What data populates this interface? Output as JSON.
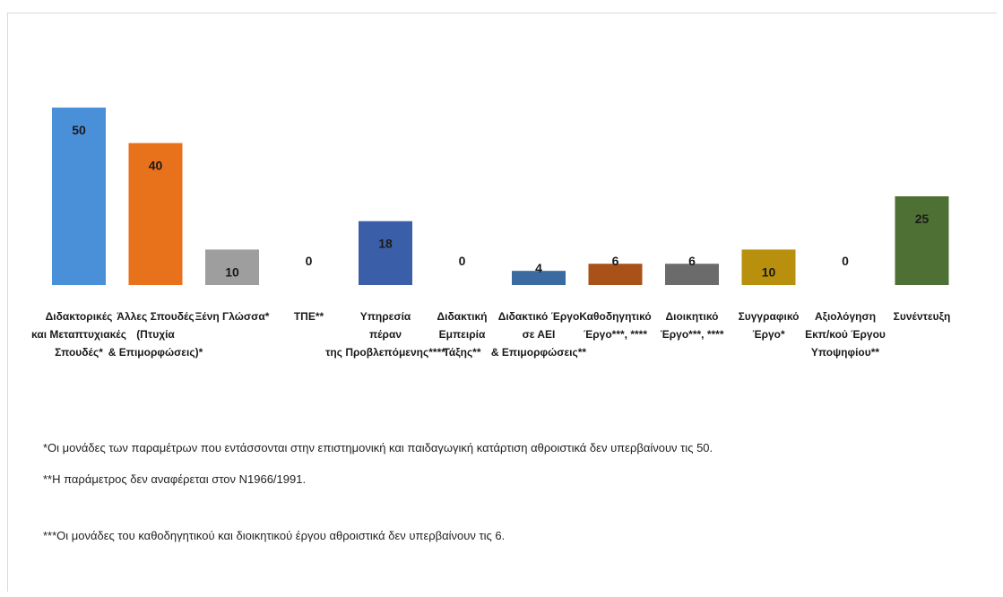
{
  "chart_data": {
    "type": "bar",
    "title": "",
    "xlabel": "",
    "ylabel": "",
    "ylim": [
      0,
      50
    ],
    "grid": false,
    "legend": "none",
    "categories": [
      [
        "Διδακτορικές",
        "και Μεταπτυχιακές",
        "Σπουδές*"
      ],
      [
        "Άλλες Σπουδές",
        "(Πτυχία",
        "& Επιμορφώσεις)*"
      ],
      [
        "Ξένη Γλώσσα*"
      ],
      [
        "ΤΠΕ**"
      ],
      [
        "Υπηρεσία",
        "πέραν",
        "της Προβλεπόμενης****"
      ],
      [
        "Διδακτική",
        "Εμπειρία",
        "Τάξης**"
      ],
      [
        "Διδακτικό Έργο",
        "σε ΑΕΙ",
        "& Επιμορφώσεις**"
      ],
      [
        "Καθοδηγητικό",
        "Έργο***, ****"
      ],
      [
        "Διοικητικό",
        "Έργο***, ****"
      ],
      [
        "Συγγραφικό",
        "Έργο*"
      ],
      [
        "Αξιολόγηση",
        "Εκπ/κού Έργου",
        "Υποψηφίου**"
      ],
      [
        "Συνέντευξη"
      ]
    ],
    "values": [
      50,
      40,
      10,
      0,
      18,
      0,
      4,
      6,
      6,
      10,
      0,
      25
    ],
    "colors": [
      "#4a90d9",
      "#e8711c",
      "#9e9e9e",
      "#9e9e9e",
      "#3a5fa8",
      "#3a5fa8",
      "#3b6aa0",
      "#a8521a",
      "#6b6b6b",
      "#b8900d",
      "#b8900d",
      "#4f7034"
    ]
  },
  "notes": {
    "note1": "*Οι μονάδες  των παραμέτρων  που εντάσσονται στην επιστημονική και παιδαγωγική κατάρτιση αθροιστικά δεν υπερβαίνουν  τις 50.",
    "note2": "**Η παράμετρος δεν αναφέρεται  στον Ν1966/1991.",
    "note3": "***Οι μονάδες του καθοδηγητικού και διοικητικού έργου αθροιστικά  δεν υπερβαίνουν τις 6."
  }
}
